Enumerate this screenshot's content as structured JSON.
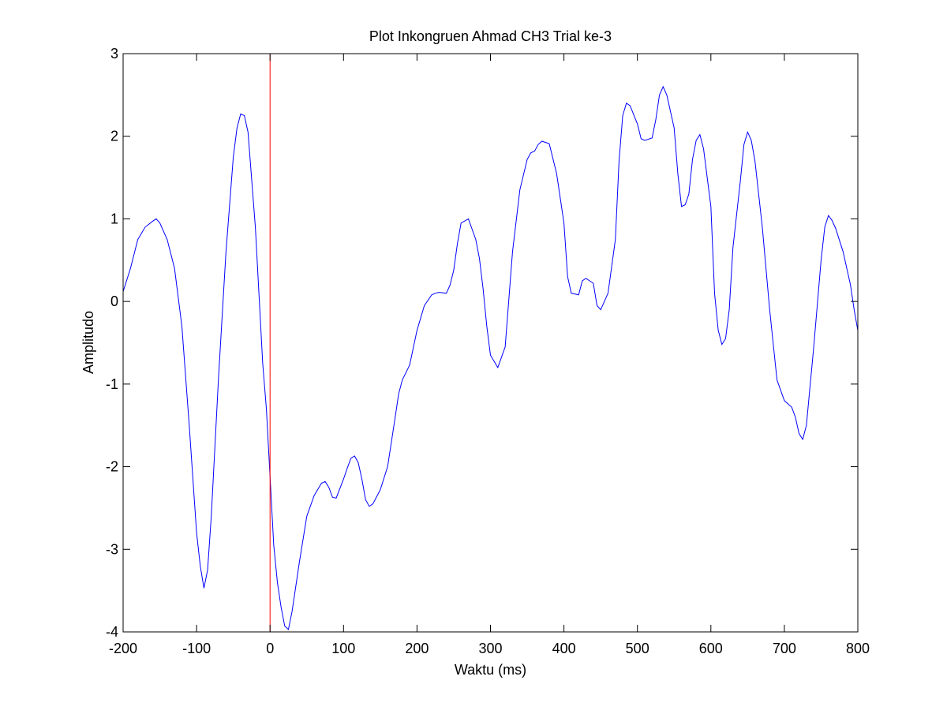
{
  "chart_data": {
    "type": "line",
    "title": "Plot Inkongruen Ahmad CH3 Trial ke-3",
    "xlabel": "Waktu (ms)",
    "ylabel": "Amplitudo",
    "xlim": [
      -200,
      800
    ],
    "ylim": [
      -4,
      3
    ],
    "xticks": [
      -200,
      -100,
      0,
      100,
      200,
      300,
      400,
      500,
      600,
      700,
      800
    ],
    "yticks": [
      -4,
      -3,
      -2,
      -1,
      0,
      1,
      2,
      3
    ],
    "xtick_labels": [
      "-200",
      "-100",
      "0",
      "100",
      "200",
      "300",
      "400",
      "500",
      "600",
      "700",
      "800"
    ],
    "ytick_labels": [
      "-4",
      "-3",
      "-2",
      "-1",
      "0",
      "1",
      "2",
      "3"
    ],
    "grid": false,
    "series": [
      {
        "color": "#0000ff",
        "x": [
          -200,
          -190,
          -180,
          -170,
          -160,
          -155,
          -150,
          -140,
          -130,
          -120,
          -110,
          -100,
          -95,
          -90,
          -85,
          -80,
          -70,
          -60,
          -50,
          -45,
          -40,
          -35,
          -30,
          -20,
          -10,
          -5,
          0,
          5,
          10,
          15,
          20,
          25,
          30,
          40,
          50,
          60,
          70,
          75,
          80,
          85,
          90,
          100,
          105,
          110,
          115,
          120,
          125,
          130,
          135,
          140,
          150,
          160,
          170,
          175,
          180,
          190,
          200,
          210,
          220,
          225,
          230,
          240,
          245,
          250,
          255,
          260,
          270,
          280,
          285,
          290,
          295,
          300,
          310,
          320,
          330,
          340,
          350,
          355,
          360,
          365,
          370,
          380,
          390,
          400,
          405,
          410,
          420,
          425,
          430,
          440,
          445,
          450,
          460,
          470,
          475,
          480,
          485,
          490,
          500,
          505,
          510,
          520,
          525,
          530,
          535,
          540,
          550,
          555,
          560,
          565,
          570,
          575,
          580,
          585,
          590,
          600,
          605,
          610,
          615,
          620,
          625,
          630,
          640,
          645,
          650,
          655,
          660,
          670,
          680,
          690,
          700,
          710,
          715,
          720,
          725,
          730,
          740,
          750,
          755,
          760,
          765,
          770,
          780,
          790,
          795,
          800
        ],
        "y": [
          0.12,
          0.4,
          0.75,
          0.9,
          0.97,
          1.0,
          0.95,
          0.75,
          0.4,
          -0.3,
          -1.5,
          -2.8,
          -3.2,
          -3.47,
          -3.25,
          -2.6,
          -0.9,
          0.6,
          1.75,
          2.1,
          2.27,
          2.25,
          2.05,
          0.9,
          -0.75,
          -1.3,
          -2.12,
          -2.95,
          -3.4,
          -3.7,
          -3.93,
          -3.97,
          -3.75,
          -3.15,
          -2.6,
          -2.35,
          -2.2,
          -2.18,
          -2.25,
          -2.37,
          -2.38,
          -2.15,
          -2.02,
          -1.9,
          -1.87,
          -1.95,
          -2.15,
          -2.4,
          -2.48,
          -2.45,
          -2.28,
          -2.0,
          -1.42,
          -1.12,
          -0.95,
          -0.77,
          -0.35,
          -0.05,
          0.08,
          0.1,
          0.11,
          0.1,
          0.2,
          0.38,
          0.7,
          0.95,
          1.0,
          0.75,
          0.52,
          0.15,
          -0.3,
          -0.65,
          -0.8,
          -0.55,
          0.6,
          1.35,
          1.72,
          1.8,
          1.82,
          1.9,
          1.94,
          1.91,
          1.55,
          0.95,
          0.3,
          0.1,
          0.08,
          0.25,
          0.28,
          0.22,
          -0.05,
          -0.1,
          0.1,
          0.75,
          1.7,
          2.25,
          2.4,
          2.37,
          2.15,
          1.97,
          1.95,
          1.98,
          2.2,
          2.5,
          2.6,
          2.5,
          2.1,
          1.55,
          1.15,
          1.17,
          1.3,
          1.72,
          1.95,
          2.02,
          1.85,
          1.15,
          0.1,
          -0.35,
          -0.52,
          -0.45,
          -0.1,
          0.65,
          1.45,
          1.9,
          2.05,
          1.95,
          1.7,
          0.9,
          -0.1,
          -0.95,
          -1.2,
          -1.28,
          -1.4,
          -1.6,
          -1.67,
          -1.5,
          -0.55,
          0.5,
          0.9,
          1.04,
          0.98,
          0.88,
          0.6,
          0.2,
          -0.1,
          -0.35
        ]
      },
      {
        "color": "#ff0000",
        "x": [
          0,
          0
        ],
        "y": [
          -4,
          3
        ]
      }
    ]
  }
}
